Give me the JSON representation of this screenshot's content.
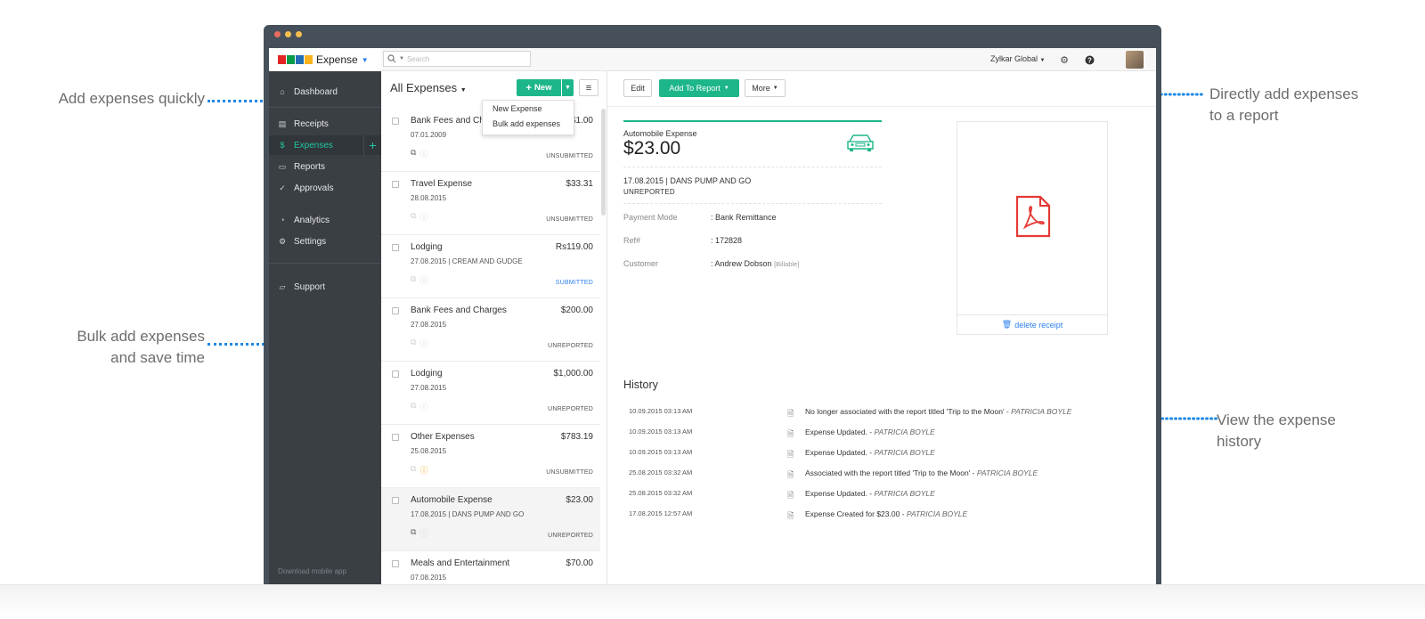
{
  "annotations": {
    "add_quickly": "Add expenses quickly",
    "bulk_line1": "Bulk add expenses",
    "bulk_line2": "and save time",
    "report_line1": "Directly add expenses",
    "report_line2": "to a report",
    "history_line1": "View the expense",
    "history_line2": "history"
  },
  "topbar": {
    "brand": "Expense",
    "search_placeholder": "Search",
    "org": "Zylkar Global"
  },
  "sidebar": {
    "items": [
      {
        "label": "Dashboard",
        "icon": "home-icon"
      },
      {
        "label": "Receipts",
        "icon": "receipt-icon"
      },
      {
        "label": "Expenses",
        "icon": "dollar-icon"
      },
      {
        "label": "Reports",
        "icon": "folder-icon"
      },
      {
        "label": "Approvals",
        "icon": "check-icon"
      },
      {
        "label": "Analytics",
        "icon": "pie-icon"
      },
      {
        "label": "Settings",
        "icon": "gear-icon"
      },
      {
        "label": "Support",
        "icon": "chat-icon"
      }
    ],
    "download": "Download mobile app"
  },
  "list": {
    "title": "All Expenses",
    "new_label": "New",
    "dropdown": [
      "New Expense",
      "Bulk add expenses"
    ],
    "rows": [
      {
        "name": "Bank Fees and Charges",
        "amount": "$1.00",
        "meta": "07.01.2009",
        "status": "UNSUBMITTED"
      },
      {
        "name": "Travel Expense",
        "amount": "$33.31",
        "meta": "28.08.2015",
        "status": "UNSUBMITTED"
      },
      {
        "name": "Lodging",
        "amount": "Rs119.00",
        "meta": "27.08.2015  |  CREAM AND GUDGE",
        "status": "SUBMITTED"
      },
      {
        "name": "Bank Fees and Charges",
        "amount": "$200.00",
        "meta": "27.08.2015",
        "status": "UNREPORTED"
      },
      {
        "name": "Lodging",
        "amount": "$1,000.00",
        "meta": "27.08.2015",
        "status": "UNREPORTED"
      },
      {
        "name": "Other Expenses",
        "amount": "$783.19",
        "meta": "25.08.2015",
        "status": "UNSUBMITTED"
      },
      {
        "name": "Automobile Expense",
        "amount": "$23.00",
        "meta": "17.08.2015  |  DANS PUMP AND GO",
        "status": "UNREPORTED"
      },
      {
        "name": "Meals and Entertainment",
        "amount": "$70.00",
        "meta": "07.08.2015",
        "status": ""
      }
    ]
  },
  "detail": {
    "edit": "Edit",
    "add_to_report": "Add To Report",
    "more": "More",
    "category": "Automobile Expense",
    "amount": "$23.00",
    "date_merchant": "17.08.2015  |  DANS PUMP AND GO",
    "report_status": "UNREPORTED",
    "fields": [
      {
        "label": "Payment Mode",
        "value": ": Bank Remittance"
      },
      {
        "label": "Ref#",
        "value": ": 172828"
      },
      {
        "label": "Customer",
        "value": ": Andrew Dobson"
      }
    ],
    "billable": "[Billable]",
    "delete_receipt": "delete receipt",
    "history_title": "History",
    "history": [
      {
        "ts": "10.09.2015 03:13 AM",
        "msg": "No longer associated with the report titled 'Trip to the Moon' - ",
        "who": "PATRICIA BOYLE"
      },
      {
        "ts": "10.09.2015 03:13 AM",
        "msg": "Expense Updated. - ",
        "who": "PATRICIA BOYLE"
      },
      {
        "ts": "10.09.2015 03:13 AM",
        "msg": "Expense Updated. - ",
        "who": "PATRICIA BOYLE"
      },
      {
        "ts": "25.08.2015 03:32 AM",
        "msg": "Associated with the report titled 'Trip to the Moon' - ",
        "who": "PATRICIA BOYLE"
      },
      {
        "ts": "25.08.2015 03:32 AM",
        "msg": "Expense Updated. - ",
        "who": "PATRICIA BOYLE"
      },
      {
        "ts": "17.08.2015 12:57 AM",
        "msg": "Expense Created for $23.00 - ",
        "who": "PATRICIA BOYLE"
      }
    ]
  },
  "colors": {
    "accent": "#1db68a",
    "sidebar": "#3a3f44",
    "annotation_line": "#1e88e5",
    "marker": "#d81b60"
  }
}
